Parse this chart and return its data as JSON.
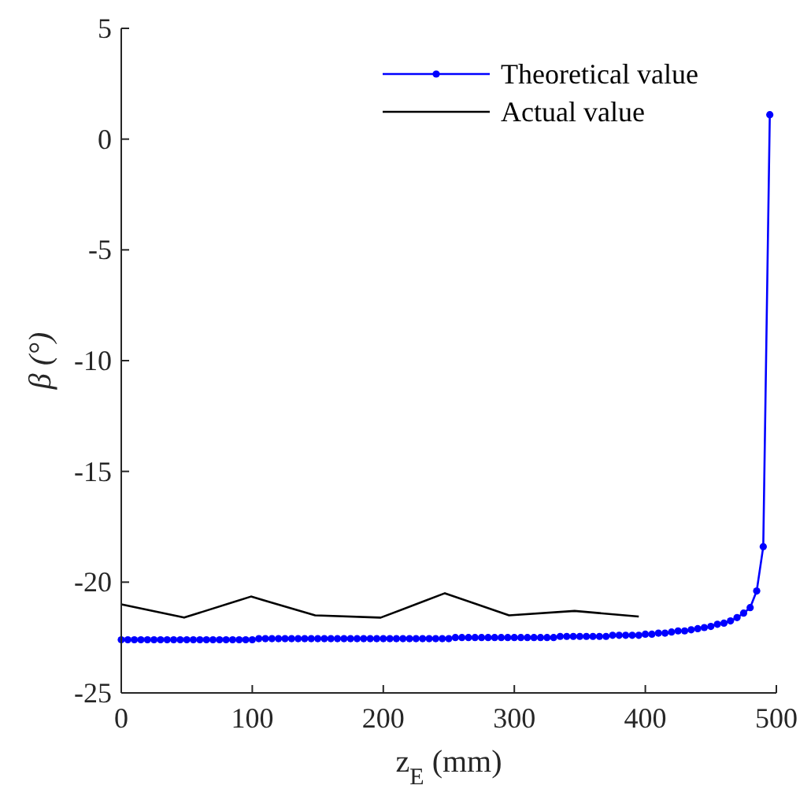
{
  "chart_data": {
    "type": "line",
    "xlabel": "z$_{E}$ (mm)",
    "ylabel": "β (°)",
    "xlim": [
      0,
      500
    ],
    "ylim": [
      -25,
      5
    ],
    "xticks": [
      0,
      100,
      200,
      300,
      400,
      500
    ],
    "yticks": [
      -25,
      -20,
      -15,
      -10,
      -5,
      0,
      5
    ],
    "legend": "top right",
    "grid": false,
    "series": [
      {
        "name": "Theoretical value",
        "color": "#0000ff",
        "marker": "circle",
        "x": [
          0,
          5,
          10,
          15,
          20,
          25,
          30,
          35,
          40,
          45,
          50,
          55,
          60,
          65,
          70,
          75,
          80,
          85,
          90,
          95,
          100,
          105,
          110,
          115,
          120,
          125,
          130,
          135,
          140,
          145,
          150,
          155,
          160,
          165,
          170,
          175,
          180,
          185,
          190,
          195,
          200,
          205,
          210,
          215,
          220,
          225,
          230,
          235,
          240,
          245,
          250,
          255,
          260,
          265,
          270,
          275,
          280,
          285,
          290,
          295,
          300,
          305,
          310,
          315,
          320,
          325,
          330,
          335,
          340,
          345,
          350,
          355,
          360,
          365,
          370,
          375,
          380,
          385,
          390,
          395,
          400,
          405,
          410,
          415,
          420,
          425,
          430,
          435,
          440,
          445,
          450,
          455,
          460,
          465,
          470,
          475,
          480,
          485,
          490,
          495
        ],
        "values": [
          -22.6,
          -22.6,
          -22.6,
          -22.6,
          -22.6,
          -22.6,
          -22.6,
          -22.6,
          -22.6,
          -22.6,
          -22.6,
          -22.6,
          -22.6,
          -22.6,
          -22.6,
          -22.6,
          -22.6,
          -22.6,
          -22.6,
          -22.6,
          -22.6,
          -22.55,
          -22.55,
          -22.55,
          -22.55,
          -22.55,
          -22.55,
          -22.55,
          -22.55,
          -22.55,
          -22.55,
          -22.55,
          -22.55,
          -22.55,
          -22.55,
          -22.55,
          -22.55,
          -22.55,
          -22.55,
          -22.55,
          -22.55,
          -22.55,
          -22.55,
          -22.55,
          -22.55,
          -22.55,
          -22.55,
          -22.55,
          -22.55,
          -22.55,
          -22.55,
          -22.5,
          -22.5,
          -22.5,
          -22.5,
          -22.5,
          -22.5,
          -22.5,
          -22.5,
          -22.5,
          -22.5,
          -22.5,
          -22.5,
          -22.5,
          -22.5,
          -22.5,
          -22.5,
          -22.45,
          -22.45,
          -22.45,
          -22.45,
          -22.45,
          -22.45,
          -22.45,
          -22.45,
          -22.4,
          -22.4,
          -22.4,
          -22.4,
          -22.4,
          -22.35,
          -22.35,
          -22.3,
          -22.3,
          -22.25,
          -22.2,
          -22.2,
          -22.15,
          -22.1,
          -22.05,
          -22.0,
          -21.9,
          -21.85,
          -21.75,
          -21.6,
          -21.4,
          -21.15,
          -20.4,
          -18.4,
          1.1
        ]
      },
      {
        "name": "Actual value",
        "color": "#000000",
        "marker": "none",
        "x": [
          0,
          48,
          99,
          148,
          198,
          247,
          296,
          346,
          395
        ],
        "values": [
          -21.0,
          -21.6,
          -20.65,
          -21.5,
          -21.6,
          -20.5,
          -21.5,
          -21.3,
          -21.55
        ]
      }
    ]
  }
}
